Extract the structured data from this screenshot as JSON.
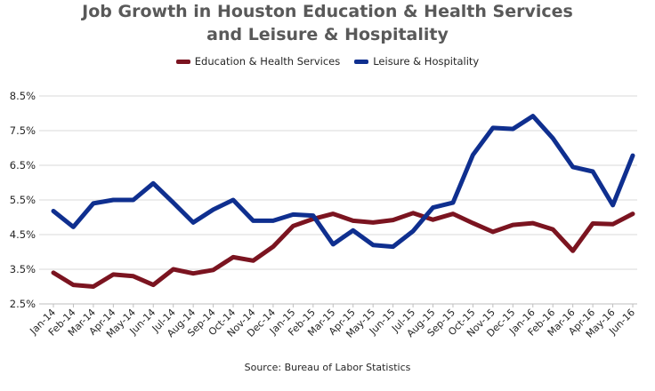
{
  "title_line1": "Job Growth in Houston Education  & Health Services",
  "title_line2": "and Leisure & Hospitality",
  "source": "Source: Bureau of Labor Statistics",
  "colors": {
    "education": "#7b1420",
    "leisure": "#0f2f8f",
    "grid": "#d9d9d9",
    "axis": "#bfbfbf"
  },
  "chart_data": {
    "type": "line",
    "title": "Job Growth in Houston Education  & Health Services and Leisure & Hospitality",
    "xlabel": "",
    "ylabel": "",
    "ylim": [
      2.5,
      8.5
    ],
    "yticks": [
      2.5,
      3.5,
      4.5,
      5.5,
      6.5,
      7.5,
      8.5
    ],
    "ytick_labels": [
      "2.5%",
      "3.5%",
      "4.5%",
      "5.5%",
      "6.5%",
      "7.5%",
      "8.5%"
    ],
    "grid": true,
    "legend_position": "top",
    "categories": [
      "Jan-14",
      "Feb-14",
      "Mar-14",
      "Apr-14",
      "May-14",
      "Jun-14",
      "Jul-14",
      "Aug-14",
      "Sep-14",
      "Oct-14",
      "Nov-14",
      "Dec-14",
      "Jan-15",
      "Feb-15",
      "Mar-15",
      "Apr-15",
      "May-15",
      "Jun-15",
      "Jul-15",
      "Aug-15",
      "Sep-15",
      "Oct-15",
      "Nov-15",
      "Dec-15",
      "Jan-16",
      "Feb-16",
      "Mar-16",
      "Apr-16",
      "May-16",
      "Jun-16"
    ],
    "series": [
      {
        "name": "Education & Health Services",
        "color": "#7b1420",
        "values": [
          3.4,
          3.05,
          3.0,
          3.35,
          3.3,
          3.05,
          3.5,
          3.38,
          3.48,
          3.85,
          3.75,
          4.15,
          4.75,
          4.95,
          5.1,
          4.9,
          4.85,
          4.92,
          5.12,
          4.93,
          5.1,
          4.83,
          4.58,
          4.78,
          4.83,
          4.65,
          4.03,
          4.82,
          4.8,
          5.1
        ]
      },
      {
        "name": "Leisure & Hospitality",
        "color": "#0f2f8f",
        "values": [
          5.18,
          4.72,
          5.4,
          5.5,
          5.5,
          5.98,
          5.42,
          4.85,
          5.22,
          5.5,
          4.9,
          4.9,
          5.08,
          5.05,
          4.22,
          4.62,
          4.2,
          4.15,
          4.6,
          5.28,
          5.42,
          6.8,
          7.58,
          7.55,
          7.92,
          7.28,
          6.45,
          6.32,
          5.35,
          6.78
        ]
      }
    ]
  }
}
